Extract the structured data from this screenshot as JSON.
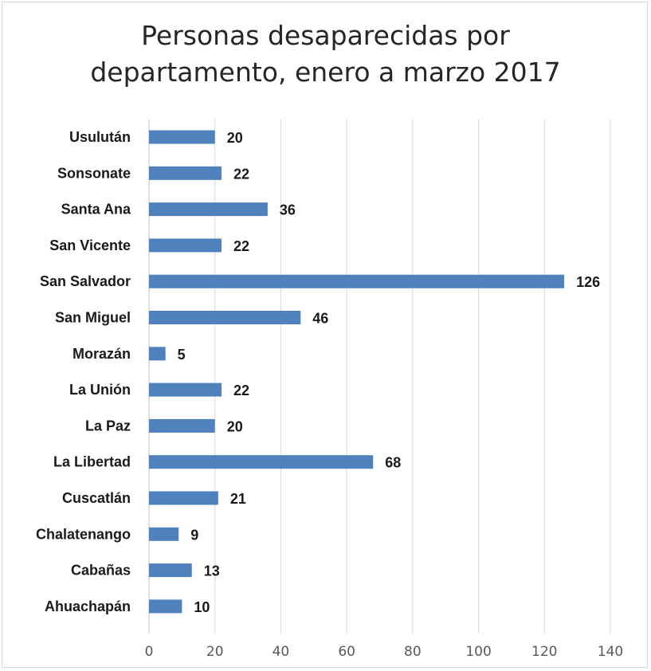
{
  "chart_data": {
    "type": "bar",
    "orientation": "horizontal",
    "title_line1": "Personas desaparecidas por",
    "title_line2": "departamento, enero a marzo 2017",
    "categories": [
      "Usulután",
      "Sonsonate",
      "Santa Ana",
      "San Vicente",
      "San Salvador",
      "San Miguel",
      "Morazán",
      "La Unión",
      "La Paz",
      "La Libertad",
      "Cuscatlán",
      "Chalatenango",
      "Cabañas",
      "Ahuachapán"
    ],
    "values": [
      20,
      22,
      36,
      22,
      126,
      46,
      5,
      22,
      20,
      68,
      21,
      9,
      13,
      10
    ],
    "xlim": [
      0,
      140
    ],
    "xticks": [
      0,
      20,
      40,
      60,
      80,
      100,
      120,
      140
    ],
    "grid": "vertical",
    "bar_color": "#4f81bd",
    "data_labels": true,
    "legend": "none"
  }
}
